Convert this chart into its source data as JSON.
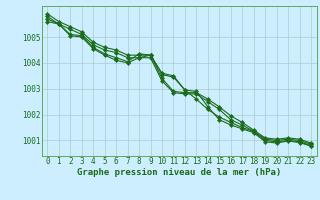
{
  "title": "Graphe pression niveau de la mer (hPa)",
  "background_color": "#cceeff",
  "plot_bg_color": "#cceeff",
  "line_color": "#1a6b1a",
  "marker_color": "#1a6b1a",
  "grid_color": "#aacccc",
  "spine_color": "#5aaa5a",
  "xlim": [
    -0.5,
    23.5
  ],
  "ylim": [
    1000.4,
    1006.2
  ],
  "yticks": [
    1001,
    1002,
    1003,
    1004,
    1005
  ],
  "xticks": [
    0,
    1,
    2,
    3,
    4,
    5,
    6,
    7,
    8,
    9,
    10,
    11,
    12,
    13,
    14,
    15,
    16,
    17,
    18,
    19,
    20,
    21,
    22,
    23
  ],
  "xlabel_fontsize": 6.5,
  "tick_fontsize": 5.5,
  "series": [
    [
      1005.8,
      1005.5,
      1005.3,
      1005.1,
      1004.7,
      1004.5,
      1004.4,
      1004.2,
      1004.2,
      1004.2,
      1003.3,
      1002.85,
      1002.8,
      1002.8,
      1002.5,
      1002.2,
      1001.8,
      1001.6,
      1001.35,
      1001.05,
      1001.0,
      1001.05,
      1001.0,
      1000.85
    ],
    [
      1005.7,
      1005.5,
      1005.1,
      1005.05,
      1004.6,
      1004.35,
      1004.2,
      1004.05,
      1004.35,
      1004.3,
      1003.55,
      1003.45,
      1002.95,
      1002.6,
      1002.2,
      1001.9,
      1001.7,
      1001.5,
      1001.35,
      1001.0,
      1000.95,
      1001.0,
      1000.95,
      1000.8
    ],
    [
      1005.6,
      1005.5,
      1005.05,
      1005.0,
      1004.55,
      1004.3,
      1004.1,
      1004.0,
      1004.2,
      1004.3,
      1003.6,
      1003.5,
      1002.95,
      1002.9,
      1002.3,
      1001.8,
      1001.6,
      1001.45,
      1001.3,
      1000.95,
      1000.9,
      1000.98,
      1000.92,
      1000.78
    ],
    [
      1005.9,
      1005.6,
      1005.4,
      1005.2,
      1004.8,
      1004.6,
      1004.5,
      1004.3,
      1004.3,
      1004.3,
      1003.4,
      1002.9,
      1002.85,
      1002.85,
      1002.6,
      1002.3,
      1001.95,
      1001.7,
      1001.4,
      1001.1,
      1001.05,
      1001.1,
      1001.05,
      1000.9
    ]
  ]
}
